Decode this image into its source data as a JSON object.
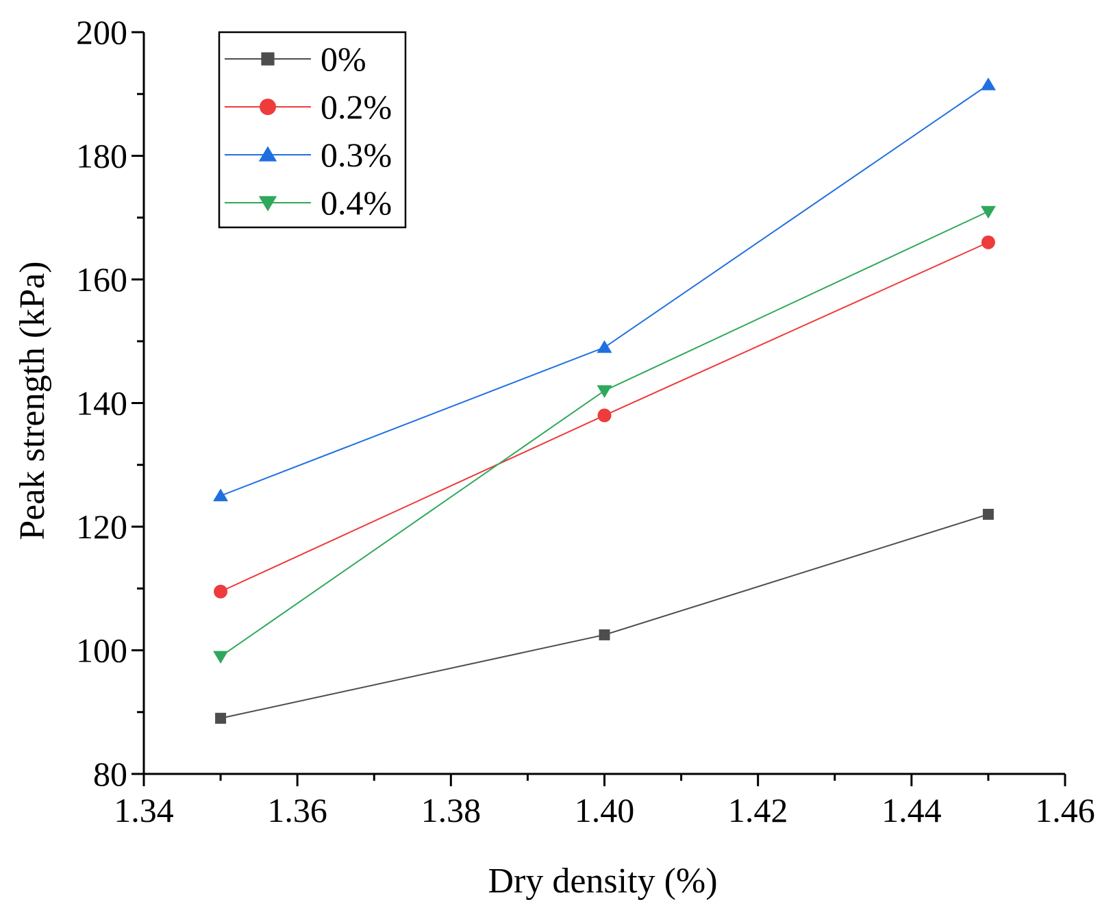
{
  "chart_data": {
    "type": "line",
    "title": "",
    "xlabel": "Dry density (%)",
    "ylabel": "Peak strength (kPa)",
    "xlim": [
      1.34,
      1.46
    ],
    "ylim": [
      80,
      200
    ],
    "x_ticks": [
      "1.34",
      "1.36",
      "1.38",
      "1.40",
      "1.42",
      "1.44",
      "1.46"
    ],
    "y_ticks": [
      "80",
      "100",
      "120",
      "140",
      "160",
      "180",
      "200"
    ],
    "grid": false,
    "legend_position": "top-left",
    "x": [
      1.35,
      1.4,
      1.45
    ],
    "series": [
      {
        "name": "0%",
        "color": "#4d4d4d",
        "marker": "square",
        "values": [
          89.0,
          102.5,
          122.0
        ]
      },
      {
        "name": "0.2%",
        "color": "#ee3b3b",
        "marker": "circle",
        "values": [
          109.5,
          138.0,
          166.0
        ]
      },
      {
        "name": "0.3%",
        "color": "#1f6fe0",
        "marker": "triangle-up",
        "values": [
          125.0,
          149.0,
          191.5
        ]
      },
      {
        "name": "0.4%",
        "color": "#2ea85a",
        "marker": "triangle-down",
        "values": [
          99.0,
          142.0,
          171.0
        ]
      }
    ]
  }
}
